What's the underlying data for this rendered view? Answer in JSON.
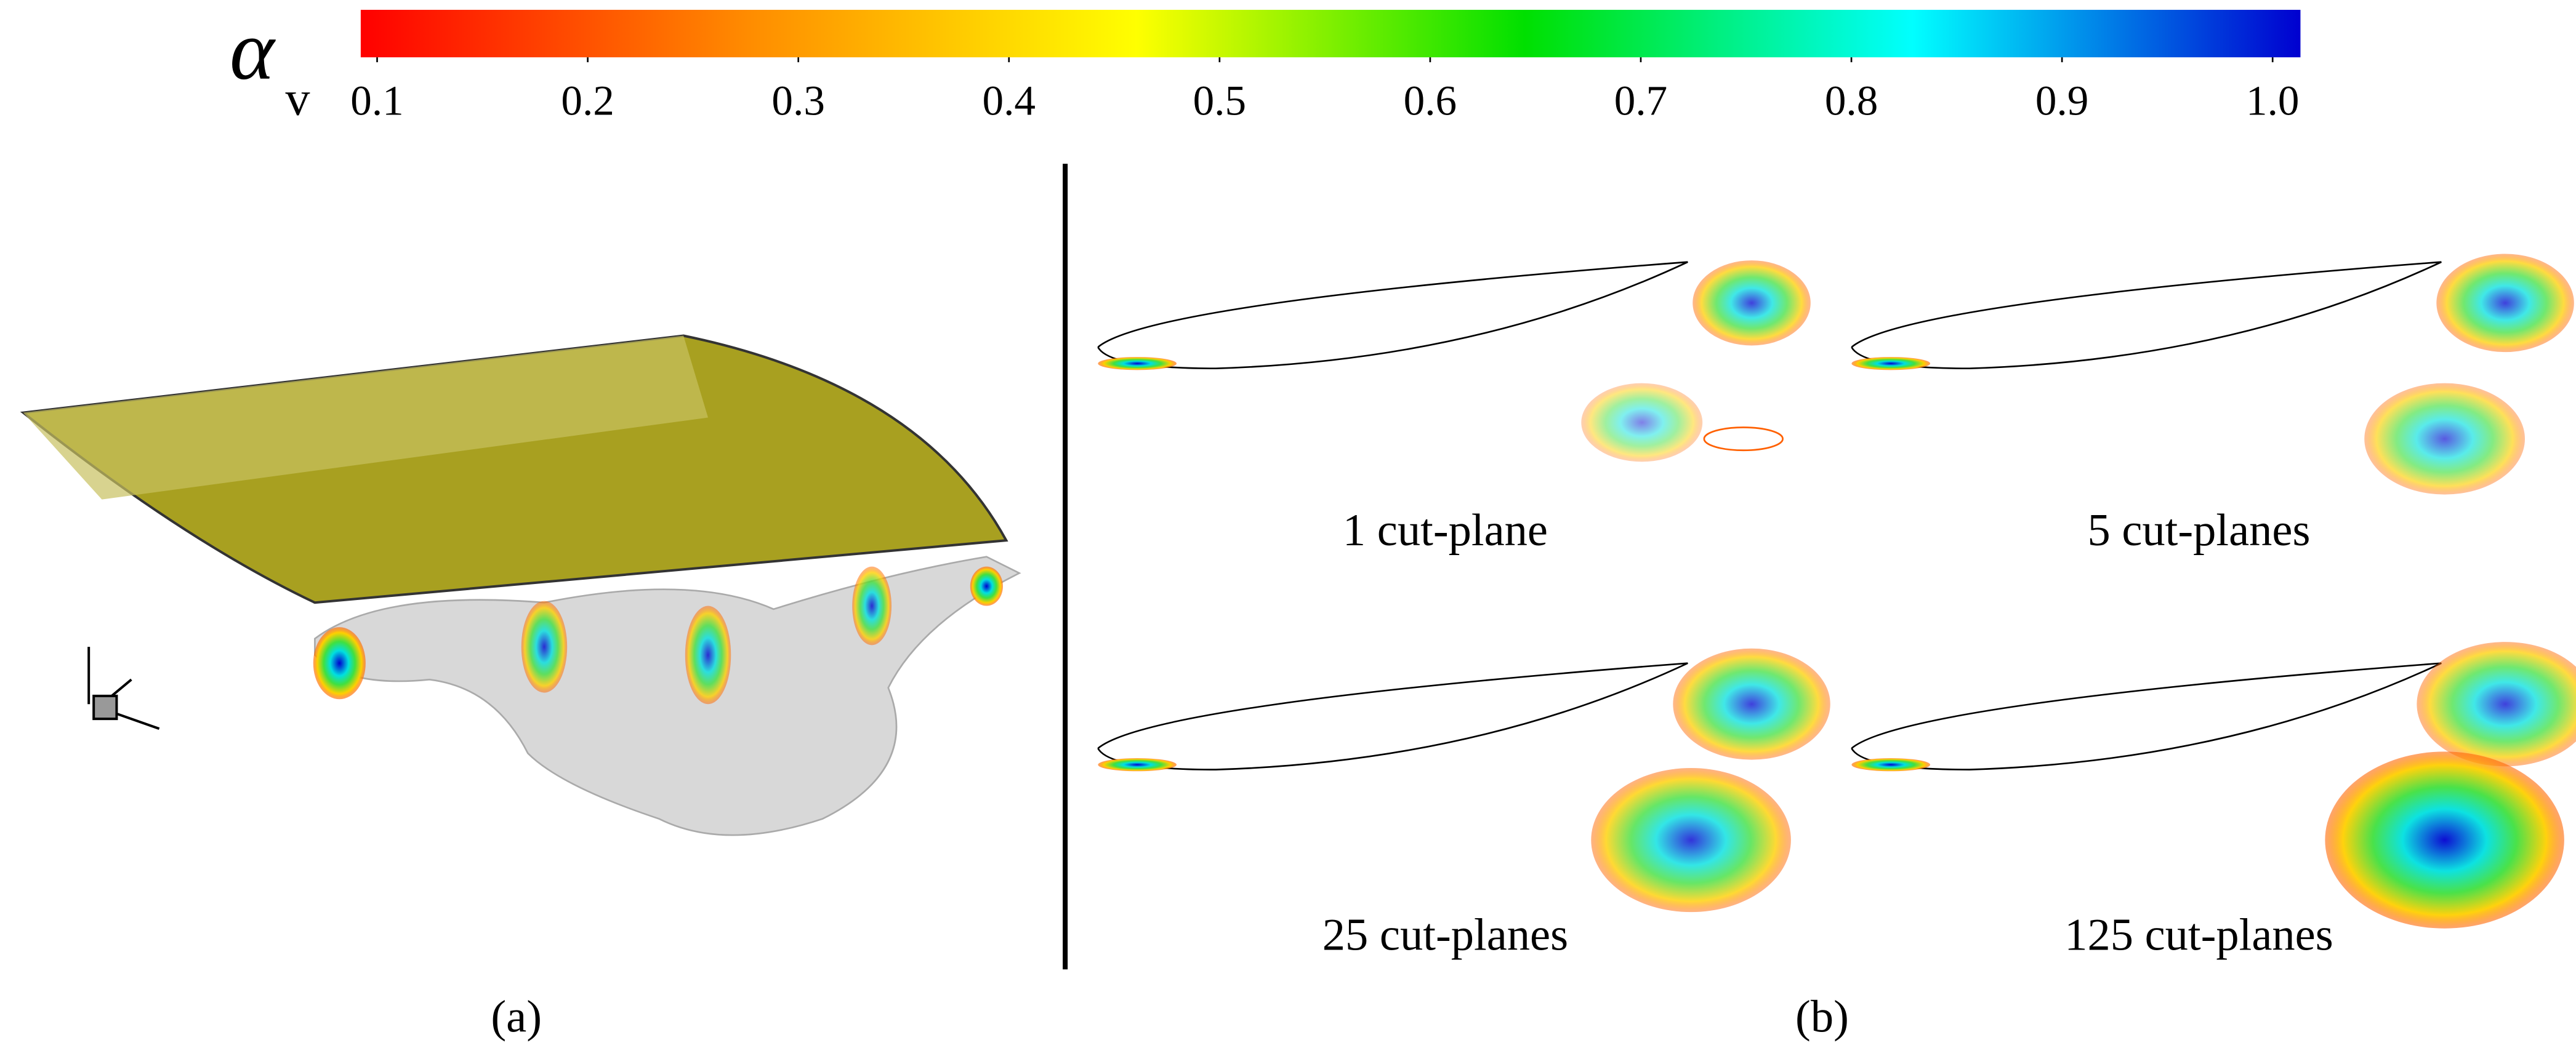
{
  "colorbar": {
    "symbol": "α",
    "subscript": "v",
    "colors": [
      "#ff0000",
      "#ff8c00",
      "#ffff00",
      "#00e000",
      "#00ffff",
      "#0000d0"
    ],
    "ticks": [
      0.1,
      0.2,
      0.3,
      0.4,
      0.5,
      0.6,
      0.7,
      0.8,
      0.9,
      {
        "value": 1,
        "label": "1.0"
      }
    ]
  },
  "panels": {
    "a": {
      "label": "(a)"
    },
    "b": {
      "label": "(b)",
      "captions": [
        "1 cut-plane",
        "5 cut-planes",
        "25 cut-planes",
        "125 cut-planes"
      ]
    }
  }
}
